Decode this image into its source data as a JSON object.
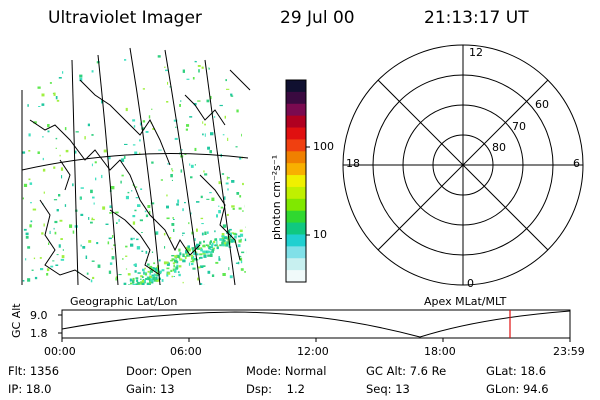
{
  "header": {
    "title": "Ultraviolet Imager",
    "date": "29 Jul 00",
    "time": "21:13:17 UT"
  },
  "colorbar": {
    "unit": "photon cm⁻²s⁻¹",
    "ticks": [
      "100",
      "10"
    ],
    "colors": [
      "#101030",
      "#3a0a40",
      "#7a0a50",
      "#b00020",
      "#e01010",
      "#f04010",
      "#f08000",
      "#f8b000",
      "#f0f000",
      "#c0f000",
      "#80e800",
      "#30d830",
      "#10c880",
      "#20d0d0",
      "#80e0e8",
      "#c8f0f0",
      "#f0fafa"
    ]
  },
  "polar": {
    "labels": {
      "top": "12",
      "left": "18",
      "right": "6",
      "bottom": "0"
    },
    "lat_labels": [
      "60",
      "70",
      "80"
    ]
  },
  "geo_map": {
    "label": "Geographic Lat/Lon",
    "aurora_colors": [
      "#30d080",
      "#40e0c0",
      "#60e850",
      "#a0f040",
      "#20c8a0"
    ]
  },
  "apex_label": "Apex MLat/MLT",
  "alt_plot": {
    "ylabel": "GC Alt",
    "yticks": [
      "9.0",
      "1.8"
    ],
    "xticks": [
      "00:00",
      "06:00",
      "12:00",
      "18:00",
      "23:59"
    ],
    "marker_time": "21:13:17",
    "marker_color": "#e01010"
  },
  "info": {
    "flt": "Flt: 1356",
    "ip": "IP: 18.0",
    "door": "Door: Open",
    "gain": "Gain: 13",
    "mode": "Mode: Normal",
    "dsp": "Dsp:    1.2",
    "gcalt": "GC Alt: 7.6 Re",
    "seq": "Seq: 13",
    "glat": "GLat: 18.6",
    "glon": "GLon: 94.6"
  }
}
